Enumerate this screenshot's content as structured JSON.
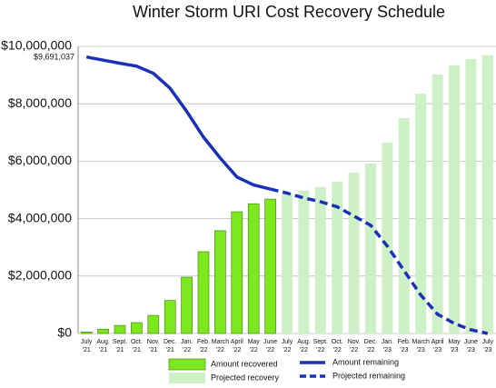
{
  "chart_data": {
    "type": "bar-line",
    "title": "Winter  Storm URI Cost Recovery Schedule",
    "categories": [
      "July '21",
      "Aug. '21",
      "Sept. '21",
      "Oct. '21",
      "Nov. '21",
      "Dec. '21",
      "Jan. '22",
      "Feb. '22",
      "March '22",
      "April '22",
      "May '22",
      "June '22",
      "July '22",
      "Aug. '22",
      "Sept. '22",
      "Oct. '22",
      "Nov. '22",
      "Dec. '22",
      "Jan. '23",
      "Feb. '23",
      "March '23",
      "April '23",
      "May '23",
      "June '23",
      "July '23"
    ],
    "annotation": "$9,691,037",
    "series": [
      {
        "name": "Amount recovered",
        "kind": "bar",
        "color": "#7ee81e",
        "values": [
          50000,
          150000,
          280000,
          380000,
          630000,
          1150000,
          1960000,
          2850000,
          3580000,
          4240000,
          4520000,
          4680000,
          null,
          null,
          null,
          null,
          null,
          null,
          null,
          null,
          null,
          null,
          null,
          null,
          null
        ]
      },
      {
        "name": "Projected recovery",
        "kind": "bar",
        "color": "#cdf0c6",
        "values": [
          null,
          null,
          null,
          null,
          null,
          null,
          null,
          null,
          null,
          null,
          null,
          null,
          4870000,
          4970000,
          5100000,
          5280000,
          5600000,
          5920000,
          6650000,
          7500000,
          8350000,
          9020000,
          9340000,
          9560000,
          9690000
        ]
      },
      {
        "name": "Amount remaining",
        "kind": "line",
        "color": "#1a30b8",
        "values": [
          9630000,
          9520000,
          9410000,
          9310000,
          9060000,
          8540000,
          7730000,
          6840000,
          6110000,
          5450000,
          5170000,
          5030000,
          null,
          null,
          null,
          null,
          null,
          null,
          null,
          null,
          null,
          null,
          null,
          null,
          null
        ]
      },
      {
        "name": "Projected remaining",
        "kind": "line",
        "dashed": true,
        "color": "#1a30b8",
        "values": [
          null,
          null,
          null,
          null,
          null,
          null,
          null,
          null,
          null,
          null,
          null,
          5030000,
          4890000,
          4720000,
          4590000,
          4410000,
          4090000,
          3770000,
          3040000,
          2190000,
          1340000,
          670000,
          350000,
          130000,
          0
        ]
      }
    ],
    "ylim": [
      0,
      10000000
    ],
    "yticks": [
      {
        "value": 0,
        "label": "$0"
      },
      {
        "value": 2000000,
        "label": "$2,000,000"
      },
      {
        "value": 4000000,
        "label": "$4,000,000"
      },
      {
        "value": 6000000,
        "label": "$6,000,000"
      },
      {
        "value": 8000000,
        "label": "$8,000,000"
      },
      {
        "value": 10000000,
        "label": "$10,000,000"
      }
    ]
  }
}
